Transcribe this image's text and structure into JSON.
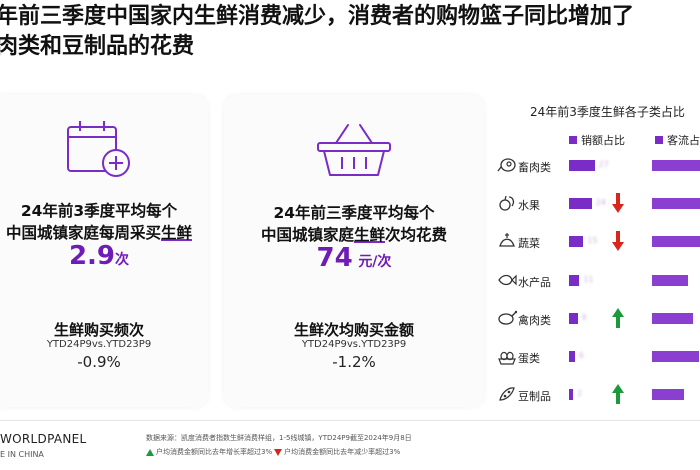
{
  "title": {
    "line1": "年前三季度中国家内生鲜消费减少，消费者的购物篮子同比增加了",
    "line2": "肉类和豆制品的花费"
  },
  "card1": {
    "icon": "calendar-plus-icon",
    "text_line1": "24年前3季度平均每个",
    "text_line2_pre": "中国城镇家庭每周采买",
    "text_line2_ul": "生鲜",
    "value": "2.9",
    "unit": "次",
    "sub_title": "生鲜购买频次",
    "ytd": "YTD24P9vs.YTD23P9",
    "change": "-0.9%"
  },
  "card2": {
    "icon": "shopping-basket-icon",
    "text_line1": "24年前三季度平均每个",
    "text_line2_pre": "中国城镇家庭",
    "text_line2_ul": "生鲜",
    "text_line2_post": "次均花费",
    "value": "74",
    "unit": "元/次",
    "sub_title": "生鲜次均购买金额",
    "ytd": "YTD24P9vs.YTD23P9",
    "change": "-1.2%"
  },
  "chart": {
    "title": "24年前3季度生鲜各子类占比",
    "legend_sales": "销额占比",
    "legend_traffic": "客流占比",
    "colors": {
      "bar": "#7a2cc6",
      "up": "#1a9a3a",
      "down": "#d8261c"
    }
  },
  "chart_data": {
    "type": "bar",
    "title": "24年前3季度生鲜各子类占比",
    "categories": [
      "畜肉类",
      "水果",
      "蔬菜",
      "水产品",
      "禽肉类",
      "蛋类",
      "豆制品"
    ],
    "icons": [
      "meat-icon",
      "fruit-icon",
      "vegetable-icon",
      "fish-icon",
      "poultry-icon",
      "egg-icon",
      "soybean-icon"
    ],
    "trend": [
      "none",
      "down",
      "down",
      "none",
      "up",
      "none",
      "up"
    ],
    "series": [
      {
        "name": "销额占比",
        "values": [
          27,
          24,
          15,
          11,
          9,
          6,
          2
        ]
      },
      {
        "name": "客流占比",
        "values": [
          62,
          80,
          78,
          40,
          45,
          52,
          35
        ]
      }
    ],
    "xlabel": "",
    "ylabel": ""
  },
  "footer": {
    "brand": "WORLDPANEL",
    "brand_sub": "E IN CHINA",
    "source": "数据来源：凯度消费者指数生鲜消费样组，1-5线城镇，YTD24P9截至2024年9月8日",
    "note_up": "户均消费金额同比去年增长率超过3%",
    "note_down": "户均消费金额同比去年减少率超过3%"
  }
}
